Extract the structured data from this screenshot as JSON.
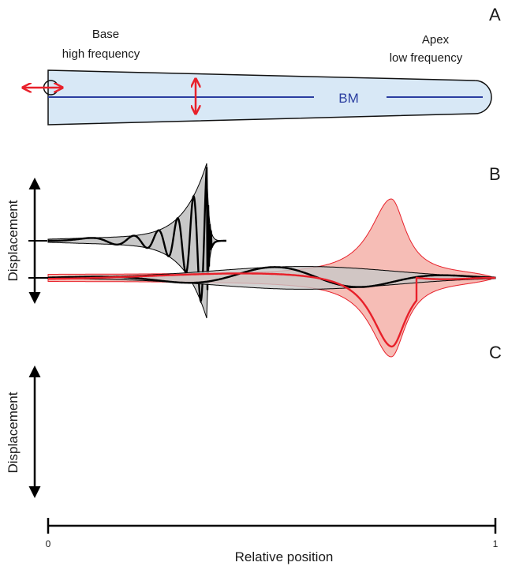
{
  "panels": {
    "a": {
      "letter": "A",
      "base_label_line1": "Base",
      "base_label_line2": "high frequency",
      "apex_label_line1": "Apex",
      "apex_label_line2": "low frequency",
      "membrane_label": "BM"
    },
    "b": {
      "letter": "B",
      "y_label": "Displacement"
    },
    "c": {
      "letter": "C",
      "y_label": "Displacement"
    }
  },
  "x_axis": {
    "label": "Relative position",
    "tick_start": "0",
    "tick_end": "1"
  },
  "colors": {
    "duct_fill": "#d8e8f6",
    "membrane": "#2b3ea0",
    "arrow_red": "#e8202a",
    "envelope_gray": "#c8c8c8",
    "envelope_pink": "#f6bdb6",
    "wave_black": "#000000",
    "wave_red": "#e8202a"
  }
}
